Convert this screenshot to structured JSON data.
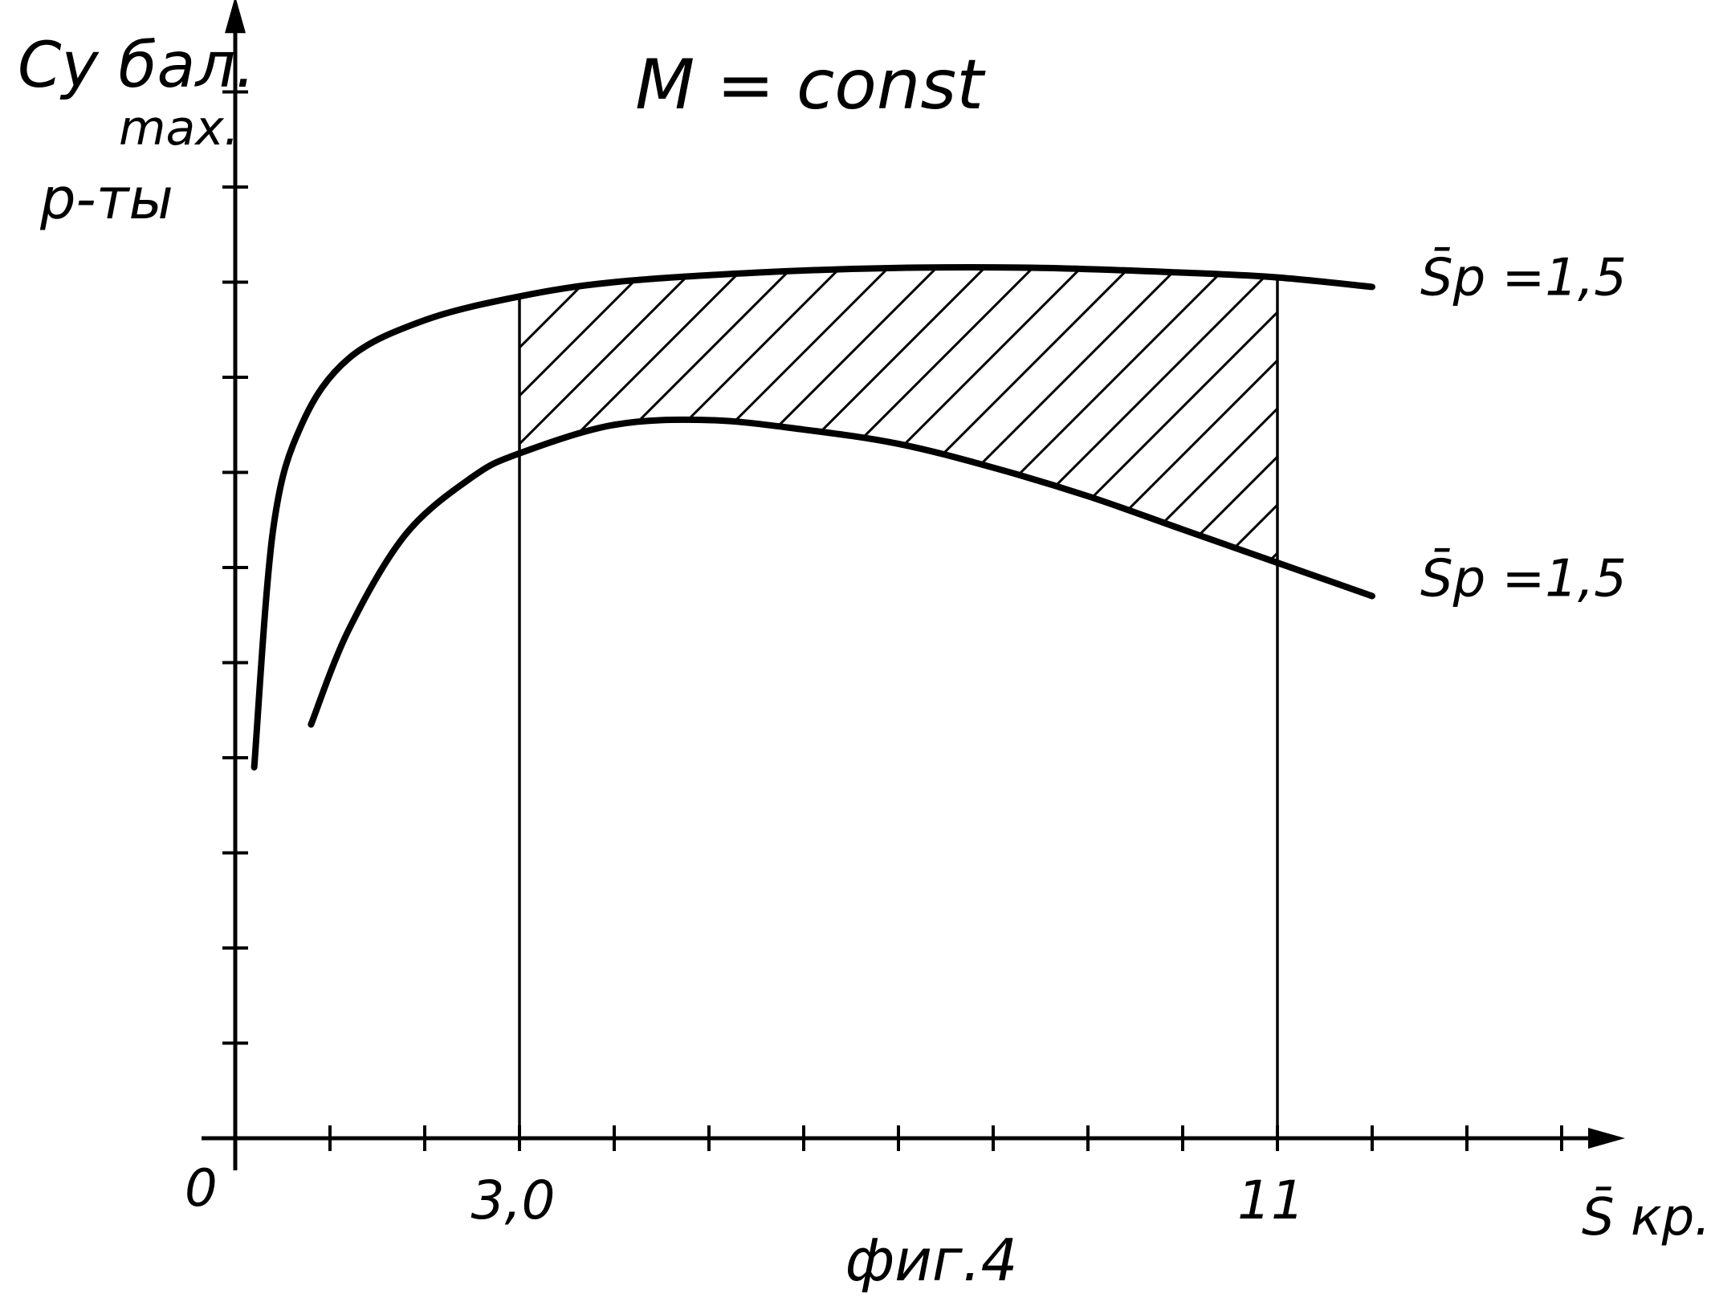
{
  "chart_data": {
    "type": "line",
    "title": "M = const",
    "caption": "фиг.4",
    "ylabel": {
      "main": "Cy бал.",
      "sub": "max.",
      "line2": "р-ты"
    },
    "xlabel": "S̄ кр.",
    "origin_label": "0",
    "x_ticks_labeled": [
      {
        "value": 3,
        "label": "3,0"
      },
      {
        "value": 11,
        "label": "11"
      }
    ],
    "xlim": [
      0,
      14.5
    ],
    "ylim": [
      0,
      11.5
    ],
    "x_minor_tick_step": 1,
    "y_minor_tick_step": 1,
    "grid": false,
    "legend": "none",
    "series": [
      {
        "name": "S̄р =1,5",
        "label_placement": "right-end-top",
        "x": [
          0.2,
          0.4,
          0.7,
          1.2,
          2.0,
          3.0,
          4.0,
          5.5,
          7.0,
          8.5,
          10.0,
          11.0,
          12.0
        ],
        "y": [
          3.9,
          6.4,
          7.5,
          8.2,
          8.6,
          8.85,
          9.0,
          9.1,
          9.15,
          9.15,
          9.1,
          9.05,
          8.95
        ]
      },
      {
        "name": "S̄р =1,5",
        "label_placement": "right-end-bottom",
        "x": [
          0.8,
          1.2,
          1.8,
          2.5,
          3.0,
          4.0,
          5.0,
          6.0,
          7.0,
          8.0,
          9.0,
          10.0,
          11.0,
          12.0
        ],
        "y": [
          4.35,
          5.35,
          6.35,
          6.95,
          7.2,
          7.5,
          7.55,
          7.45,
          7.3,
          7.05,
          6.75,
          6.4,
          6.05,
          5.7
        ]
      }
    ],
    "shaded_region": {
      "x_from": 3,
      "x_to": 11,
      "between": "series",
      "pattern": "diagonal-hatch"
    }
  }
}
